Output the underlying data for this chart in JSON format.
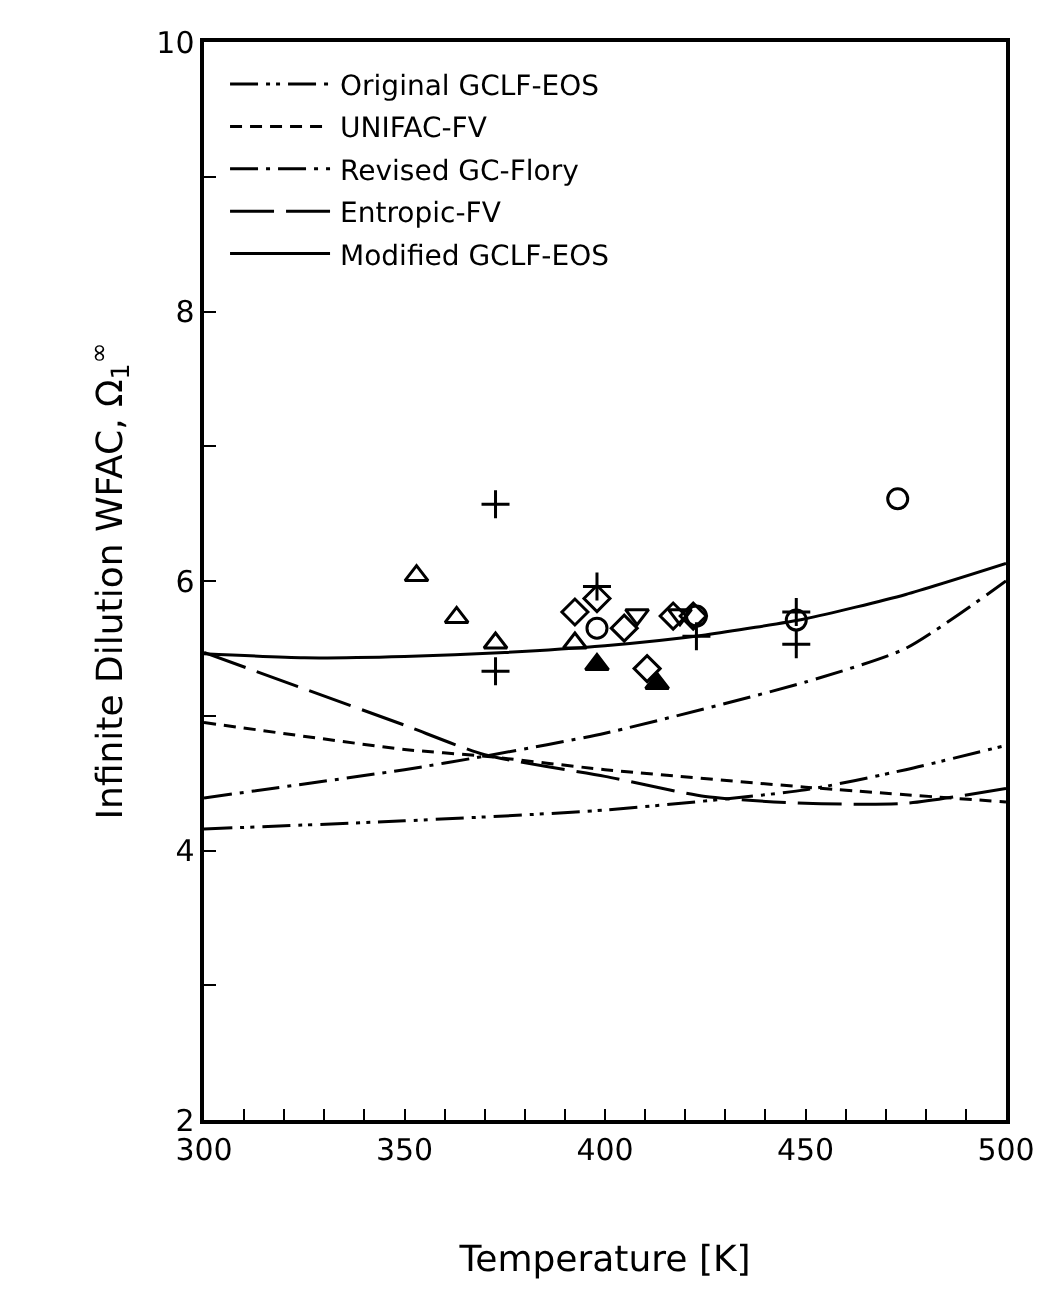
{
  "chart_data": {
    "type": "line",
    "xlabel": "Temperature [K]",
    "ylabel": "Infinite Dilution WFAC, Ω$_{1}$$^{∞}$",
    "xlim": [
      300,
      500
    ],
    "ylim": [
      2,
      10
    ],
    "xticks": [
      300,
      {
        "value": 310,
        "label": null
      },
      {
        "value": 320,
        "label": null
      },
      {
        "value": 330,
        "label": null
      },
      {
        "value": 340,
        "label": null
      },
      350,
      {
        "value": 360,
        "label": null
      },
      {
        "value": 370,
        "label": null
      },
      {
        "value": 380,
        "label": null
      },
      {
        "value": 390,
        "label": null
      },
      400,
      {
        "value": 410,
        "label": null
      },
      {
        "value": 420,
        "label": null
      },
      {
        "value": 430,
        "label": null
      },
      {
        "value": 440,
        "label": null
      },
      450,
      {
        "value": 460,
        "label": null
      },
      {
        "value": 470,
        "label": null
      },
      {
        "value": 480,
        "label": null
      },
      {
        "value": 490,
        "label": null
      },
      500
    ],
    "yticks": [
      2,
      {
        "value": 3,
        "label": null
      },
      4,
      {
        "value": 5,
        "label": null
      },
      6,
      {
        "value": 7,
        "label": null
      },
      8,
      {
        "value": 9,
        "label": null
      },
      10
    ],
    "legend": "top left",
    "series": [
      {
        "name": "Original GCLF-EOS",
        "color": "#000000",
        "line_style": "dashdotdot",
        "marker": "none",
        "x": [
          300,
          350,
          400,
          450,
          475,
          500
        ],
        "values": [
          4.16,
          4.22,
          4.3,
          4.45,
          4.6,
          4.78
        ]
      },
      {
        "name": "UNIFAC-FV",
        "color": "#000000",
        "line_style": "dashed",
        "marker": "none",
        "x": [
          300,
          350,
          370,
          400,
          450,
          500
        ],
        "values": [
          4.95,
          4.75,
          4.7,
          4.6,
          4.47,
          4.36
        ]
      },
      {
        "name": "Revised GC-Flory",
        "color": "#000000",
        "line_style": "dashdot",
        "marker": "none",
        "x": [
          300,
          350,
          370,
          400,
          450,
          475,
          500
        ],
        "values": [
          4.39,
          4.6,
          4.7,
          4.87,
          5.25,
          5.5,
          6.0
        ]
      },
      {
        "name": "Entropic-FV",
        "color": "#000000",
        "line_style": "longdash",
        "marker": "none",
        "x": [
          300,
          325,
          350,
          370,
          400,
          425,
          450,
          475,
          500
        ],
        "values": [
          5.47,
          5.2,
          4.93,
          4.71,
          4.55,
          4.4,
          4.35,
          4.35,
          4.46
        ]
      },
      {
        "name": "Modified GCLF-EOS",
        "color": "#000000",
        "line_style": "solid",
        "marker": "none",
        "x": [
          300,
          325,
          350,
          375,
          400,
          425,
          450,
          475,
          500
        ],
        "values": [
          5.46,
          5.43,
          5.44,
          5.47,
          5.52,
          5.6,
          5.72,
          5.9,
          6.13
        ]
      },
      {
        "type": "scatter",
        "color": "#000000",
        "marker": "cross",
        "x": [
          372.7,
          372.7,
          398,
          422.8,
          447.7,
          447.7
        ],
        "values": [
          6.57,
          5.33,
          5.96,
          5.59,
          5.77,
          5.53
        ]
      },
      {
        "type": "scatter",
        "color": "#000000",
        "marker": "triangle-open",
        "x": [
          353,
          363,
          372.7,
          392.5
        ],
        "values": [
          6.04,
          5.73,
          5.54,
          5.54
        ]
      },
      {
        "type": "scatter",
        "color": "#000000",
        "marker": "triangle",
        "x": [
          398,
          413
        ],
        "values": [
          5.38,
          5.24
        ]
      },
      {
        "type": "scatter",
        "color": "#000000",
        "marker": "diamond-open",
        "x": [
          392.5,
          398,
          404.8,
          410.5,
          417,
          422
        ],
        "values": [
          5.77,
          5.87,
          5.65,
          5.35,
          5.74,
          5.74
        ]
      },
      {
        "type": "scatter",
        "color": "#000000",
        "marker": "circle-open",
        "x": [
          398,
          422.8,
          447.7,
          473
        ],
        "values": [
          5.65,
          5.74,
          5.71,
          6.61
        ]
      },
      {
        "type": "scatter",
        "color": "#000000",
        "marker": "triangle-down-open",
        "x": [
          408,
          418.7
        ],
        "values": [
          5.75,
          5.75
        ]
      }
    ]
  }
}
